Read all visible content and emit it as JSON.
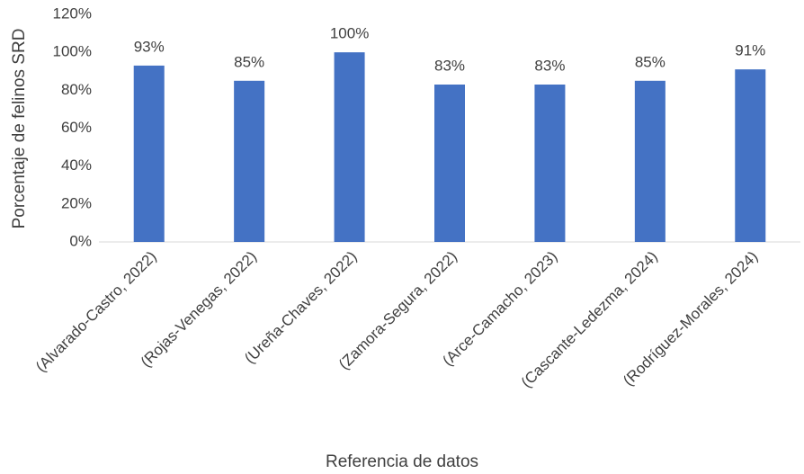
{
  "chart_data": {
    "type": "bar",
    "xlabel": "Referencia de datos",
    "ylabel": "Porcentaje de felinos SRD",
    "categories": [
      "(Alvarado-Castro, 2022)",
      "(Rojas-Venegas, 2022)",
      "(Ureña-Chaves, 2022)",
      "(Zamora-Segura, 2022)",
      "(Arce-Camacho, 2023)",
      "(Cascante-Ledezma, 2024)",
      "(Rodríguez-Morales, 2024)"
    ],
    "values": [
      93,
      85,
      100,
      83,
      83,
      85,
      91
    ],
    "value_labels": [
      "93%",
      "85%",
      "100%",
      "83%",
      "83%",
      "85%",
      "91%"
    ],
    "color": "#4472c4",
    "ylim": [
      0,
      120
    ],
    "yticks": [
      {
        "value": 0,
        "label": "0%"
      },
      {
        "value": 20,
        "label": "20%"
      },
      {
        "value": 40,
        "label": "40%"
      },
      {
        "value": 60,
        "label": "60%"
      },
      {
        "value": 80,
        "label": "80%"
      },
      {
        "value": 100,
        "label": "100%"
      },
      {
        "value": 120,
        "label": "120%"
      }
    ],
    "grid": false
  }
}
